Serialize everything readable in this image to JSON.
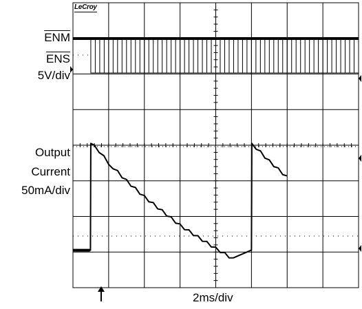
{
  "brand": "LeCroy",
  "labels": {
    "enm": "ENM",
    "ens": "ENS",
    "voltage_scale": "5V/div",
    "output": "Output",
    "current": "Current",
    "current_scale": "50mA/div",
    "timebase": "2ms/div"
  },
  "colors": {
    "background": "#ffffff",
    "grid": "#000000",
    "trace": "#000000"
  },
  "chart_data": {
    "type": "line",
    "grid": true,
    "x_divisions": 8,
    "y_divisions": 10,
    "xlabel": "2ms/div",
    "xlim": [
      0,
      16
    ],
    "x_unit": "ms",
    "trigger_marker": 1.0,
    "series": [
      {
        "name": "ENM",
        "kind": "logic-level",
        "level_div": 5.33,
        "x": [
          0,
          16
        ],
        "state": "high"
      },
      {
        "name": "ENS",
        "kind": "pulse-train",
        "y_scale": "5V/div",
        "high_div": 5.05,
        "low_div": 4.15,
        "start_ms": 1.0,
        "end_ms": 16,
        "pulse_period_ms": 0.25
      },
      {
        "name": "Output Current",
        "kind": "stepped-ramp",
        "y_scale": "50mA/div",
        "points": [
          [
            0.0,
            1.05
          ],
          [
            0.98,
            1.05
          ],
          [
            1.0,
            4.05
          ],
          [
            1.2,
            4.0
          ],
          [
            2.0,
            3.5
          ],
          [
            3.0,
            3.0
          ],
          [
            4.0,
            2.55
          ],
          [
            5.0,
            2.15
          ],
          [
            6.0,
            1.75
          ],
          [
            7.0,
            1.42
          ],
          [
            8.0,
            1.1
          ],
          [
            9.0,
            0.8
          ],
          [
            9.97,
            1.05
          ],
          [
            10.0,
            1.05
          ],
          [
            10.02,
            4.05
          ],
          [
            11.0,
            3.55
          ],
          [
            12.0,
            3.1
          ]
        ]
      }
    ]
  }
}
